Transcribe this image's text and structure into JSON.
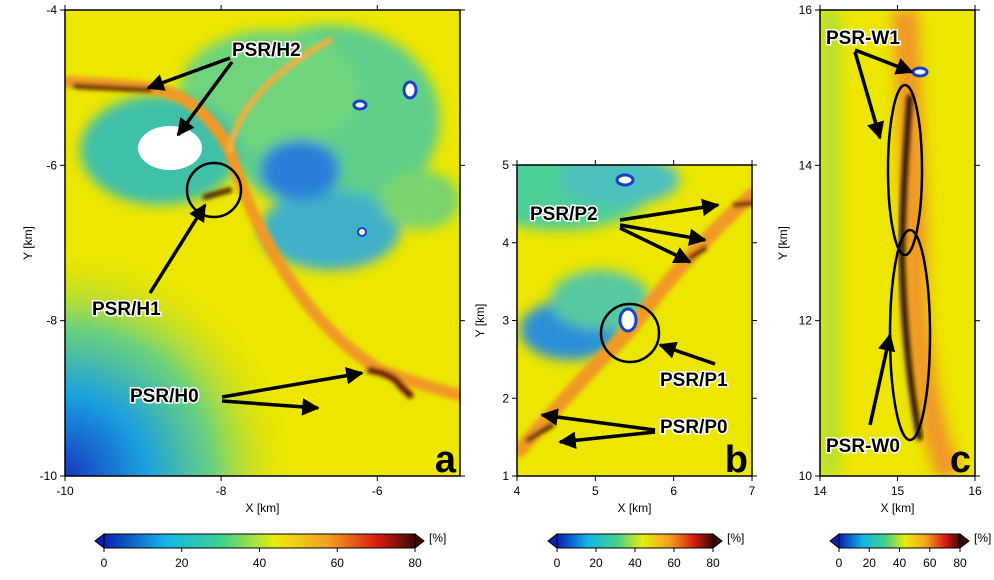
{
  "panels": [
    {
      "label": "a",
      "x_label": "X [km]",
      "y_label": "Y [km]",
      "xlim": [
        -10,
        -4.94
      ],
      "ylim": [
        -10,
        -4
      ],
      "xticks": [
        -10,
        -8,
        -6
      ],
      "yticks": [
        -10,
        -8,
        -6,
        -4
      ],
      "annotations": [
        "PSR/H2",
        "PSR/H1",
        "PSR/H0"
      ],
      "colorbar": {
        "lim": [
          0,
          80
        ],
        "ticks": [
          0,
          20,
          40,
          60,
          80
        ],
        "unit": "[%]"
      }
    },
    {
      "label": "b",
      "x_label": "X [km]",
      "y_label": "Y [km]",
      "xlim": [
        4,
        7
      ],
      "ylim": [
        1,
        5
      ],
      "xticks": [
        4,
        5,
        6,
        7
      ],
      "yticks": [
        1,
        2,
        3,
        4,
        5
      ],
      "annotations": [
        "PSR/P2",
        "PSR/P1",
        "PSR/P0"
      ],
      "colorbar": {
        "lim": [
          0,
          80
        ],
        "ticks": [
          0,
          20,
          40,
          60,
          80
        ],
        "unit": "[%]"
      }
    },
    {
      "label": "c",
      "x_label": "X [km]",
      "y_label": "Y [km]",
      "xlim": [
        14,
        16
      ],
      "ylim": [
        10,
        16
      ],
      "xticks": [
        14,
        15,
        16
      ],
      "yticks": [
        10,
        12,
        14,
        16
      ],
      "annotations": [
        "PSR-W1",
        "PSR-W0"
      ],
      "colorbar": {
        "lim": [
          0,
          80
        ],
        "ticks": [
          0,
          20,
          40,
          60,
          80
        ],
        "unit": "[%]"
      }
    }
  ]
}
